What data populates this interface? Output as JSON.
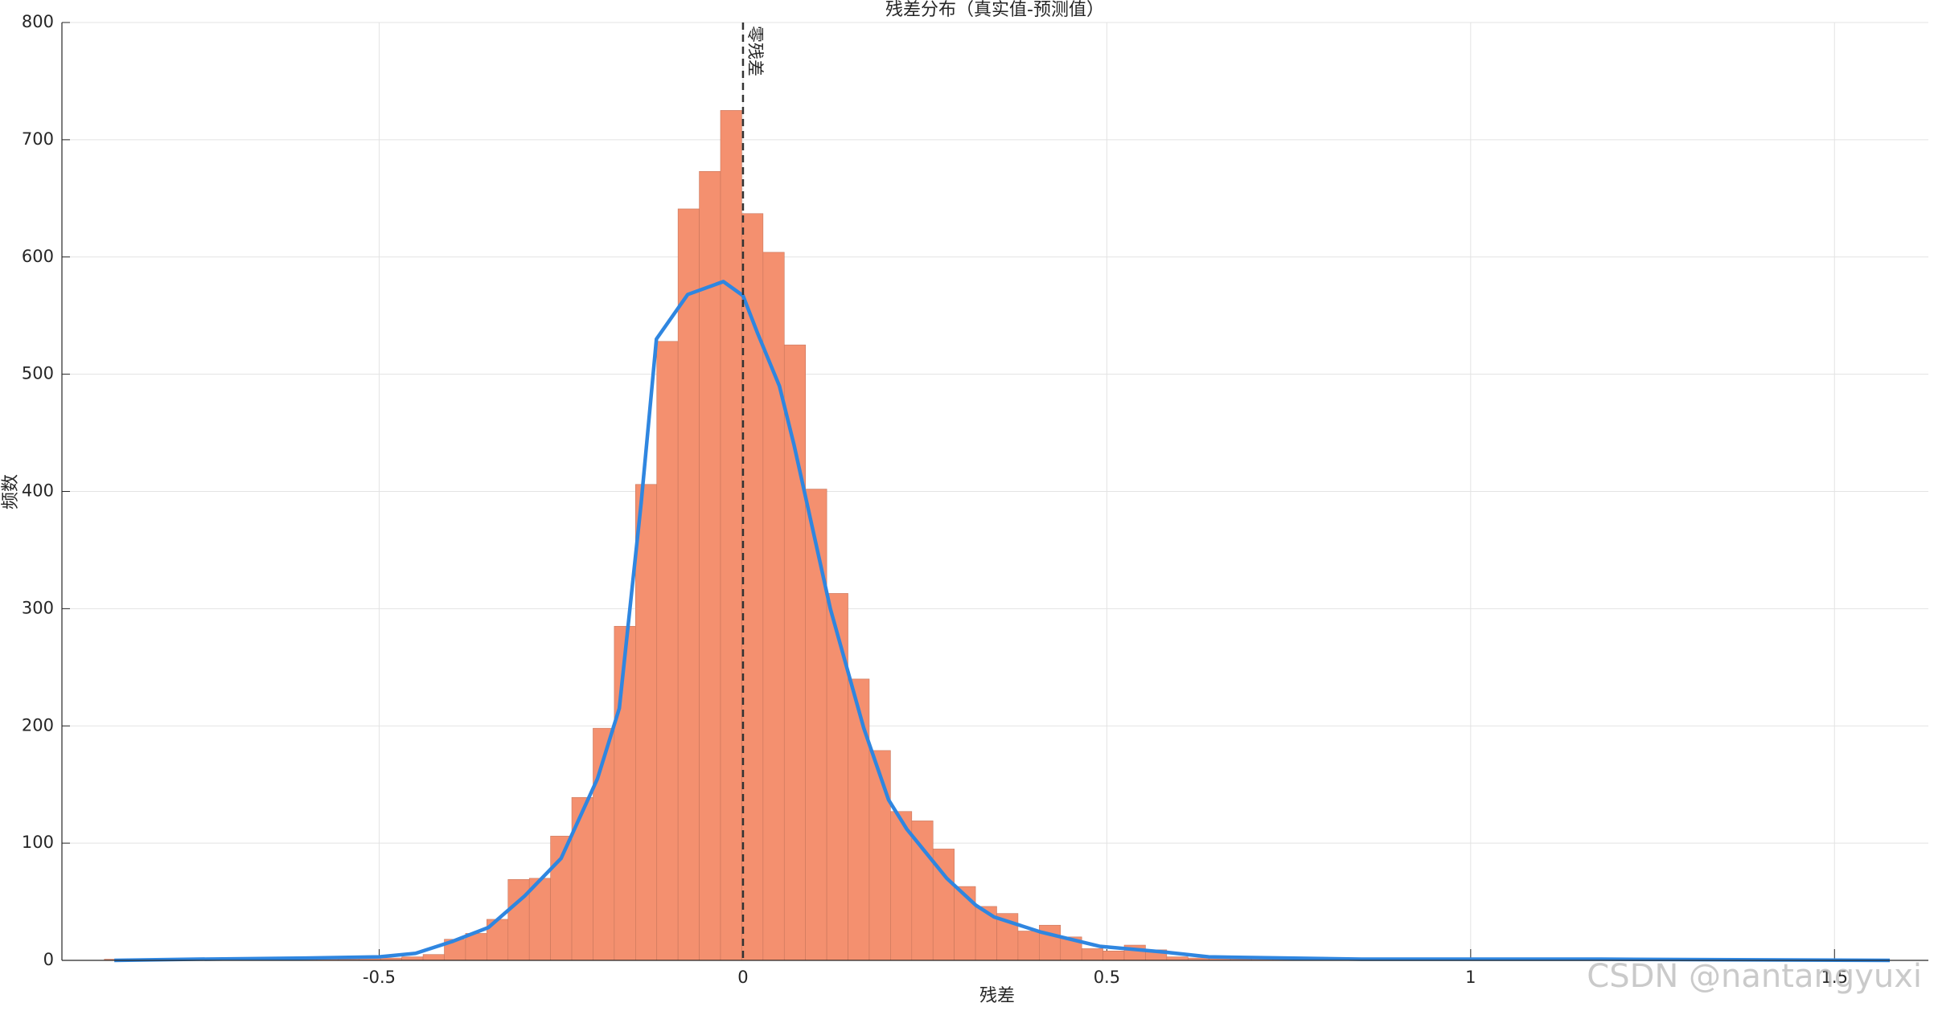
{
  "chart_data": {
    "type": "histogram",
    "title": "残差分布（真实值-预测值）",
    "xlabel": "残差",
    "ylabel": "频数",
    "bins": [
      -0.8777,
      -0.8485,
      -0.8193,
      -0.7901,
      -0.7609,
      -0.7317,
      -0.7025,
      -0.6733,
      -0.6441,
      -0.6149,
      -0.5857,
      -0.5565,
      -0.5273,
      -0.4981,
      -0.4689,
      -0.4397,
      -0.4105,
      -0.3813,
      -0.3521,
      -0.3229,
      -0.2937,
      -0.2645,
      -0.2353,
      -0.2061,
      -0.1769,
      -0.1477,
      -0.1185,
      -0.0893,
      -0.0601,
      -0.0309,
      -0.0017,
      0.0275,
      0.0567,
      0.0859,
      0.1151,
      0.1443,
      0.1735,
      0.2027,
      0.2319,
      0.2611,
      0.2903,
      0.3195,
      0.3487,
      0.3779,
      0.4071,
      0.4363,
      0.4655,
      0.4947,
      0.5239,
      0.5531,
      0.5823,
      0.6115,
      0.6407,
      0.6699,
      0.6991,
      0.7283,
      0.7575,
      0.7867,
      0.8159,
      0.8451,
      0.8743,
      0.9035,
      0.9327,
      0.9619,
      0.9911,
      1.0203,
      1.0495,
      1.0787,
      1.1079,
      1.1371,
      1.1663,
      1.1955,
      1.2247,
      1.2539,
      1.2831,
      1.3123,
      1.3415,
      1.3707,
      1.3999,
      1.4291,
      1.4583,
      1.4875,
      1.5167,
      1.5459,
      1.5751
    ],
    "values": [
      1,
      0,
      1,
      0,
      0,
      1,
      0,
      0,
      1,
      3,
      2,
      1,
      2,
      2,
      3,
      5,
      18,
      23,
      35,
      69,
      70,
      106,
      139,
      198,
      285,
      406,
      528,
      641,
      673,
      725,
      637,
      604,
      525,
      402,
      313,
      240,
      179,
      127,
      119,
      95,
      63,
      46,
      40,
      25,
      30,
      20,
      10,
      8,
      13,
      9,
      3,
      2,
      2,
      1,
      2,
      1,
      1,
      0,
      1,
      1,
      0,
      1,
      0,
      0,
      1,
      1,
      0,
      1,
      0,
      0,
      1,
      0,
      1,
      0,
      0,
      1,
      0,
      1,
      0,
      0,
      0,
      1,
      0,
      1
    ],
    "color": "#f4906f",
    "kde": {
      "color": "#2f86e0",
      "x": [
        -0.864,
        -0.75,
        -0.6,
        -0.5,
        -0.45,
        -0.4,
        -0.35,
        -0.3,
        -0.25,
        -0.2,
        -0.17,
        -0.14,
        -0.119,
        -0.076,
        -0.027,
        0,
        0.02,
        0.05,
        0.07,
        0.12,
        0.166,
        0.2,
        0.225,
        0.28,
        0.32,
        0.345,
        0.41,
        0.49,
        0.58,
        0.64,
        0.85,
        1.18,
        1.576
      ],
      "y": [
        0,
        1,
        2,
        3,
        6,
        16,
        28,
        55,
        87,
        155,
        215,
        390,
        530,
        568,
        579,
        567,
        535,
        490,
        440,
        300,
        198,
        137,
        112,
        70,
        47,
        37,
        24,
        12,
        7,
        3,
        1,
        1,
        0
      ]
    },
    "reference_line": {
      "x": 0,
      "label": "零残差"
    },
    "xlim": [
      -0.936,
      1.629
    ],
    "ylim": [
      0,
      800
    ],
    "xticks": [
      -0.5,
      0,
      0.5,
      1,
      1.5
    ],
    "yticks": [
      0,
      100,
      200,
      300,
      400,
      500,
      600,
      700,
      800
    ],
    "grid": true
  },
  "watermark": "CSDN @nantangyuxi"
}
